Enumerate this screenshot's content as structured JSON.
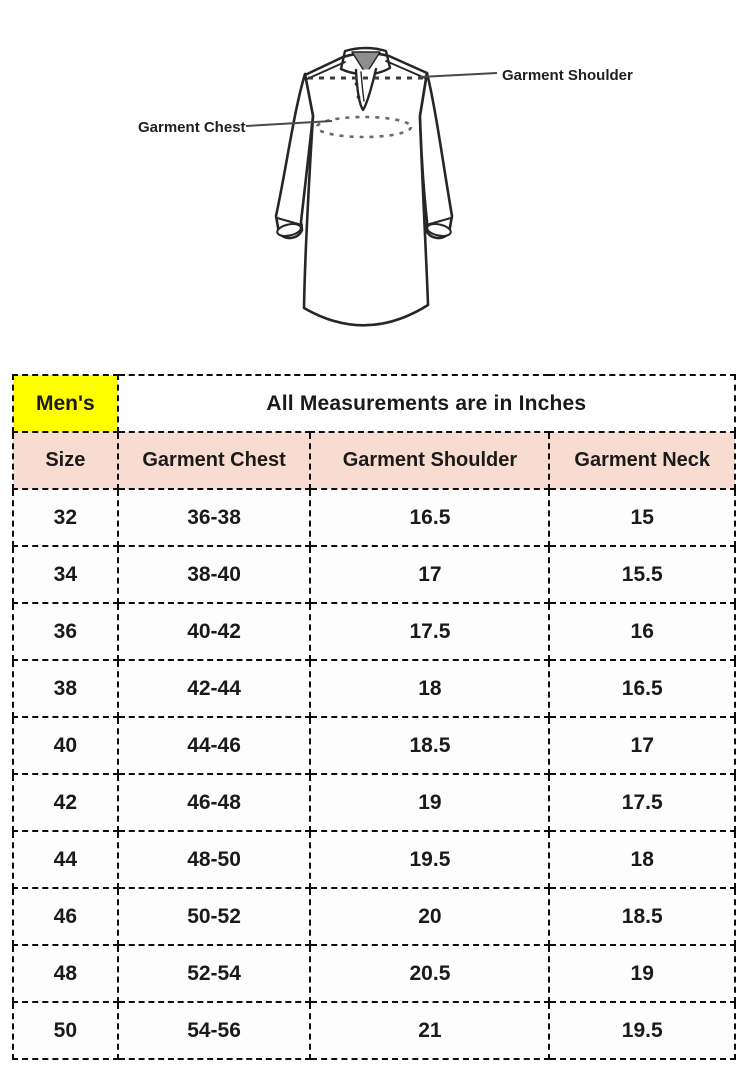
{
  "diagram": {
    "shoulder_label": "Garment Shoulder",
    "chest_label": "Garment Chest"
  },
  "size_chart": {
    "category": "Men's",
    "title": "All Measurements are in Inches",
    "columns": [
      "Size",
      "Garment Chest",
      "Garment Shoulder",
      "Garment Neck"
    ],
    "rows": [
      [
        "32",
        "36-38",
        "16.5",
        "15"
      ],
      [
        "34",
        "38-40",
        "17",
        "15.5"
      ],
      [
        "36",
        "40-42",
        "17.5",
        "16"
      ],
      [
        "38",
        "42-44",
        "18",
        "16.5"
      ],
      [
        "40",
        "44-46",
        "18.5",
        "17"
      ],
      [
        "42",
        "46-48",
        "19",
        "17.5"
      ],
      [
        "44",
        "48-50",
        "19.5",
        "18"
      ],
      [
        "46",
        "50-52",
        "20",
        "18.5"
      ],
      [
        "48",
        "52-54",
        "20.5",
        "19"
      ],
      [
        "50",
        "54-56",
        "21",
        "19.5"
      ]
    ]
  },
  "colors": {
    "highlight_yellow": "#ffff00",
    "header_peach": "#f9dcd1",
    "border_black": "#0d0d0d",
    "ink": "#1a1a1a"
  }
}
